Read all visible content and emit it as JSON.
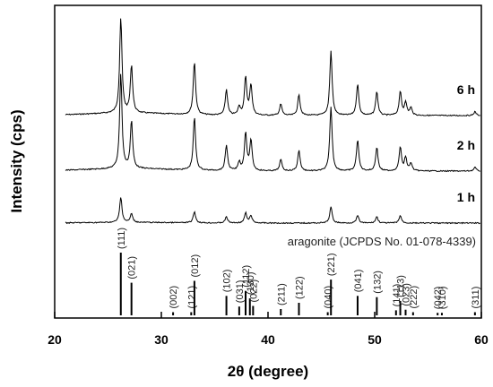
{
  "chart_data": {
    "type": "line",
    "xlabel": "2θ (degree)",
    "ylabel": "Intensity (cps)",
    "xlim": [
      20,
      60
    ],
    "xticks": [
      20,
      30,
      40,
      50,
      60
    ],
    "grid": false,
    "series": [
      {
        "name": "6 h",
        "peaks": [
          [
            26.2,
            1.0
          ],
          [
            27.2,
            0.5
          ],
          [
            33.1,
            0.56
          ],
          [
            36.1,
            0.27
          ],
          [
            37.3,
            0.09
          ],
          [
            37.9,
            0.4
          ],
          [
            38.4,
            0.32
          ],
          [
            41.2,
            0.12
          ],
          [
            42.9,
            0.22
          ],
          [
            45.9,
            0.68
          ],
          [
            48.4,
            0.33
          ],
          [
            50.2,
            0.25
          ],
          [
            52.4,
            0.25
          ],
          [
            52.9,
            0.14
          ],
          [
            53.4,
            0.08
          ],
          [
            59.4,
            0.04
          ]
        ]
      },
      {
        "name": "2 h",
        "peaks": [
          [
            26.2,
            1.0
          ],
          [
            27.2,
            0.5
          ],
          [
            33.1,
            0.56
          ],
          [
            36.1,
            0.27
          ],
          [
            37.3,
            0.09
          ],
          [
            37.9,
            0.4
          ],
          [
            38.4,
            0.32
          ],
          [
            41.2,
            0.12
          ],
          [
            42.9,
            0.22
          ],
          [
            45.9,
            0.68
          ],
          [
            48.4,
            0.33
          ],
          [
            50.2,
            0.25
          ],
          [
            52.4,
            0.25
          ],
          [
            52.9,
            0.14
          ],
          [
            53.4,
            0.08
          ],
          [
            59.4,
            0.04
          ]
        ]
      },
      {
        "name": "1 h",
        "peaks": [
          [
            26.2,
            1.0
          ],
          [
            27.2,
            0.35
          ],
          [
            33.1,
            0.45
          ],
          [
            36.1,
            0.25
          ],
          [
            37.9,
            0.4
          ],
          [
            38.4,
            0.3
          ],
          [
            45.9,
            0.65
          ],
          [
            48.4,
            0.3
          ],
          [
            50.2,
            0.25
          ],
          [
            52.4,
            0.3
          ]
        ]
      }
    ],
    "reference": {
      "label": "aragonite (JCPDS No. 01-078-4339)",
      "lines": [
        {
          "hkl": "(111)",
          "x": 26.2,
          "intensity": 1.0
        },
        {
          "hkl": "(021)",
          "x": 27.2,
          "intensity": 0.52
        },
        {
          "hkl": "(002)",
          "x": 31.1,
          "intensity": 0.05
        },
        {
          "hkl": "(121)",
          "x": 32.8,
          "intensity": 0.05
        },
        {
          "hkl": "(012)",
          "x": 33.1,
          "intensity": 0.55
        },
        {
          "hkl": "(102)",
          "x": 36.1,
          "intensity": 0.31
        },
        {
          "hkl": "(031)",
          "x": 37.3,
          "intensity": 0.14
        },
        {
          "hkl": "(112)",
          "x": 37.9,
          "intensity": 0.39
        },
        {
          "hkl": "(130)",
          "x": 38.3,
          "intensity": 0.27
        },
        {
          "hkl": "(022)",
          "x": 38.6,
          "intensity": 0.15
        },
        {
          "hkl": "(211)",
          "x": 41.2,
          "intensity": 0.1
        },
        {
          "hkl": "(122)",
          "x": 42.9,
          "intensity": 0.2
        },
        {
          "hkl": "(040)",
          "x": 45.6,
          "intensity": 0.05
        },
        {
          "hkl": "(221)",
          "x": 45.9,
          "intensity": 0.57
        },
        {
          "hkl": "(041)",
          "x": 48.4,
          "intensity": 0.31
        },
        {
          "hkl": "(132)",
          "x": 50.2,
          "intensity": 0.29
        },
        {
          "hkl": "(141)",
          "x": 52.0,
          "intensity": 0.08
        },
        {
          "hkl": "(113)",
          "x": 52.4,
          "intensity": 0.23
        },
        {
          "hkl": "(023)",
          "x": 52.9,
          "intensity": 0.09
        },
        {
          "hkl": "(222)",
          "x": 53.6,
          "intensity": 0.05
        },
        {
          "hkl": "(042)",
          "x": 55.9,
          "intensity": 0.04
        },
        {
          "hkl": "(310)",
          "x": 56.3,
          "intensity": 0.04
        },
        {
          "hkl": "(311)",
          "x": 59.4,
          "intensity": 0.05
        }
      ]
    }
  }
}
